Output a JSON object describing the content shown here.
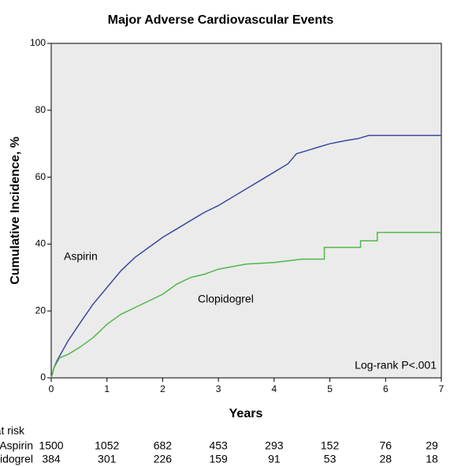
{
  "chart_data": {
    "type": "line",
    "title": "Major Adverse Cardiovascular Events",
    "x_label": "Years",
    "y_label": "Cumulative Incidence, %",
    "xlim": [
      0,
      7
    ],
    "xticks": [
      0,
      1,
      2,
      3,
      4,
      5,
      6,
      7
    ],
    "ylim": [
      0,
      100
    ],
    "yticks": [
      0,
      20,
      40,
      60,
      80,
      100
    ],
    "annotation": "Log-rank P<.001",
    "series": [
      {
        "name": "Aspirin",
        "color": "#3b4a9e",
        "x": [
          0,
          0.05,
          0.1,
          0.2,
          0.3,
          0.5,
          0.75,
          1,
          1.25,
          1.5,
          1.75,
          2,
          2.25,
          2.5,
          2.75,
          3,
          3.25,
          3.5,
          3.75,
          4,
          4.25,
          4.4,
          4.6,
          4.8,
          5,
          5.3,
          5.5,
          5.7,
          7
        ],
        "values": [
          0,
          3,
          5,
          8,
          11,
          16,
          22,
          27,
          32,
          36,
          39,
          42,
          44.5,
          47,
          49.5,
          51.5,
          54,
          56.5,
          59,
          61.5,
          64,
          67,
          68,
          69,
          70,
          71,
          71.5,
          72.5,
          72.5
        ]
      },
      {
        "name": "Clopidogrel",
        "color": "#4fb848",
        "x": [
          0,
          0.05,
          0.15,
          0.3,
          0.5,
          0.75,
          1,
          1.25,
          1.5,
          1.75,
          2,
          2.25,
          2.5,
          2.75,
          3,
          3.5,
          4,
          4.5,
          4.9,
          4.9,
          5.55,
          5.55,
          5.85,
          5.85,
          7
        ],
        "values": [
          0,
          3,
          6,
          7,
          9,
          12,
          16,
          19,
          21,
          23,
          25,
          28,
          30,
          31,
          32.5,
          34,
          34.5,
          35.5,
          35.5,
          39,
          39,
          41,
          41,
          43.5,
          43.5
        ]
      }
    ],
    "risk_table": {
      "title": "No. at risk",
      "rows": [
        {
          "name": "Aspirin",
          "values": [
            1500,
            1052,
            682,
            453,
            293,
            152,
            76,
            29
          ]
        },
        {
          "name": "Clopidogrel",
          "values": [
            384,
            301,
            226,
            159,
            91,
            53,
            28,
            18
          ]
        }
      ]
    }
  }
}
